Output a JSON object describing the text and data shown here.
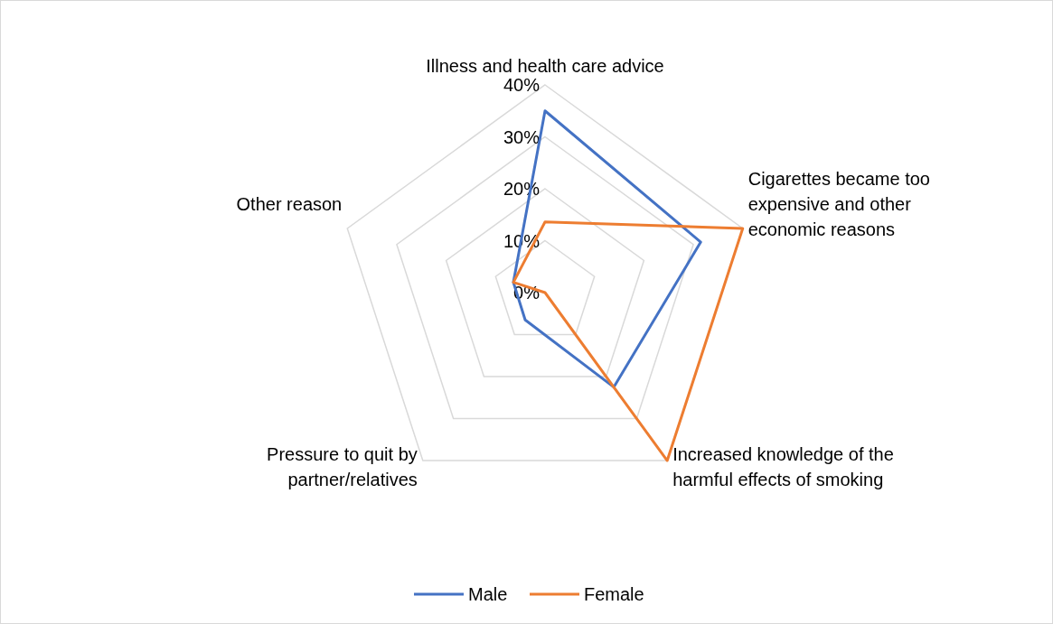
{
  "chart_data": {
    "type": "radar",
    "categories": [
      "Illness and health care advice",
      "Cigarettes became too expensive and other economic reasons",
      "Increased knowledge of the harmful effects of smoking",
      "Pressure to quit by partner/relatives",
      "Other reason"
    ],
    "series": [
      {
        "name": "Male",
        "color": "#4472c4",
        "values": [
          0.35,
          0.315,
          0.225,
          0.065,
          0.064
        ]
      },
      {
        "name": "Female",
        "color": "#ed7d31",
        "values": [
          0.136,
          0.4,
          0.4,
          0,
          0.064
        ]
      }
    ],
    "ylim": [
      0,
      0.4
    ],
    "yticks": [
      {
        "value": 0,
        "label": "0%"
      },
      {
        "value": 0.1,
        "label": "10%"
      },
      {
        "value": 0.2,
        "label": "20%"
      },
      {
        "value": 0.3,
        "label": "30%"
      },
      {
        "value": 0.4,
        "label": "40%"
      }
    ],
    "grid": true,
    "legend": "bottom",
    "marker": "none",
    "line_style": "solid"
  }
}
